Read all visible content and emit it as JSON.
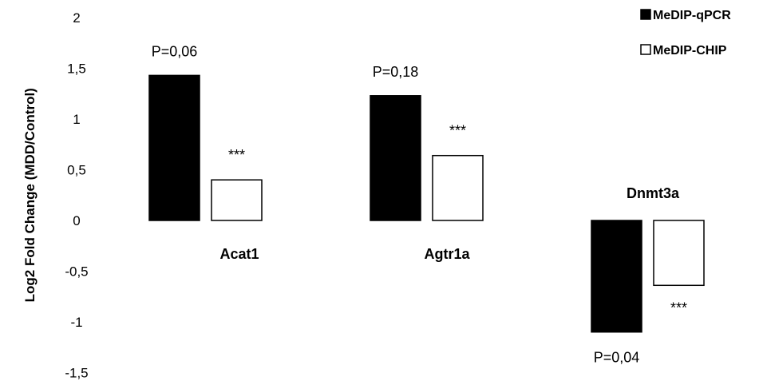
{
  "chart_data": {
    "type": "bar",
    "ylabel": "Log2 Fold Change (MDD/Control)",
    "ylim": [
      -1.5,
      2
    ],
    "yticks": [
      "2",
      "1,5",
      "1",
      "0,5",
      "0",
      "-0,5",
      "-1",
      "-1,5"
    ],
    "ytick_values": [
      2,
      1.5,
      1,
      0.5,
      0,
      -0.5,
      -1,
      -1.5
    ],
    "grid": false,
    "legend_position": "top-right",
    "categories": [
      "Acat1",
      "Agtr1a",
      "Dnmt3a"
    ],
    "series": [
      {
        "name": "MeDIP-qPCR",
        "values": [
          1.43,
          1.23,
          -1.1
        ],
        "color": "#000000"
      },
      {
        "name": "MeDIP-CHIP",
        "values": [
          0.4,
          0.64,
          -0.64
        ],
        "color": "#ffffff"
      }
    ],
    "annotations": {
      "qpcr": [
        "P=0,06",
        "P=0,18",
        "P=0,04"
      ],
      "chip": [
        "***",
        "***",
        "***"
      ]
    }
  }
}
